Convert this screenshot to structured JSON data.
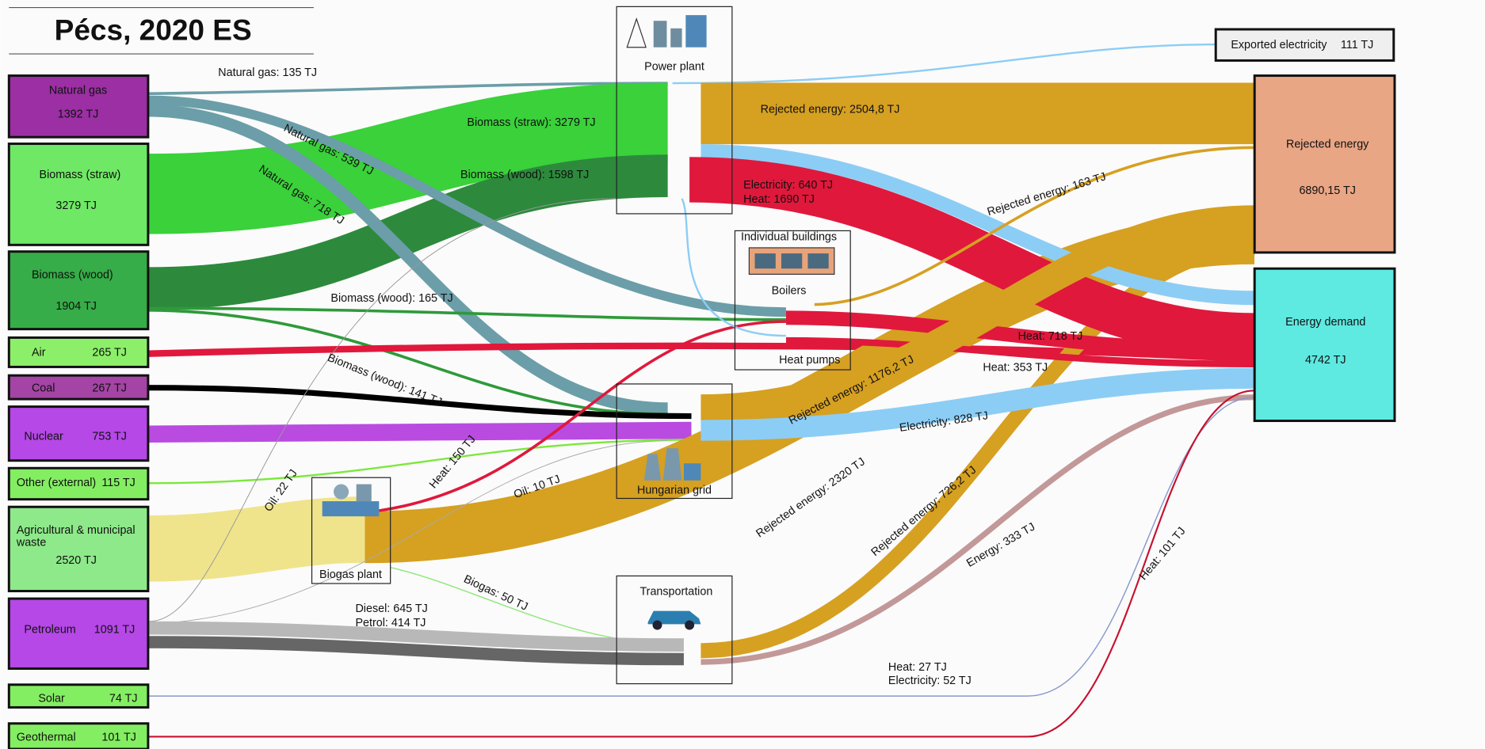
{
  "title": "Pécs, 2020 ES",
  "sources": [
    {
      "name": "Natural gas",
      "value": "1392 TJ"
    },
    {
      "name": "Biomass (straw)",
      "value": "3279 TJ"
    },
    {
      "name": "Biomass (wood)",
      "value": "1904 TJ"
    },
    {
      "name": "Air",
      "value": "265 TJ"
    },
    {
      "name": "Coal",
      "value": "267 TJ"
    },
    {
      "name": "Nuclear",
      "value": "753 TJ"
    },
    {
      "name": "Other (external)",
      "value": "115 TJ"
    },
    {
      "name": [
        "Agricultural & municipal",
        "waste"
      ],
      "value": "2520 TJ"
    },
    {
      "name": "Petroleum",
      "value": "1091 TJ"
    },
    {
      "name": "Solar",
      "value": "74 TJ"
    },
    {
      "name": "Geothermal",
      "value": "101 TJ"
    }
  ],
  "processes": [
    "Power plant",
    "Individual buildings",
    "Boilers",
    "Heat pumps",
    "Hungarian grid",
    "Biogas plant",
    "Transportation"
  ],
  "sinks": [
    {
      "name": "Exported electricity",
      "value": "111 TJ"
    },
    {
      "name": "Rejected energy",
      "value": "6890,15 TJ"
    },
    {
      "name": "Energy demand",
      "value": "4742 TJ"
    }
  ],
  "flow_labels": [
    "Natural gas: 135 TJ",
    "Biomass (straw): 3279 TJ",
    "Natural gas: 539 TJ",
    "Natural gas: 718 TJ",
    "Biomass (wood): 1598 TJ",
    "Rejected energy: 2504,8 TJ",
    "Electricity: 640 TJ",
    "Heat: 1690 TJ",
    "Rejected energy: 163 TJ",
    "Biomass (wood): 165 TJ",
    "Heat: 718 TJ",
    "Biomass (wood): 141 TJ",
    "Heat: 353 TJ",
    "Rejected energy: 1176,2 TJ",
    "Electricity: 828 TJ",
    "Heat: 150 TJ",
    "Oil: 22 TJ",
    "Oil: 10 TJ",
    "Rejected energy: 2320 TJ",
    "Rejected energy: 726,2 TJ",
    "Energy: 333 TJ",
    "Biogas: 50 TJ",
    "Diesel: 645 TJ",
    "Petrol: 414 TJ",
    "Heat: 101 TJ",
    "Heat: 27 TJ",
    "Electricity: 52 TJ"
  ]
}
